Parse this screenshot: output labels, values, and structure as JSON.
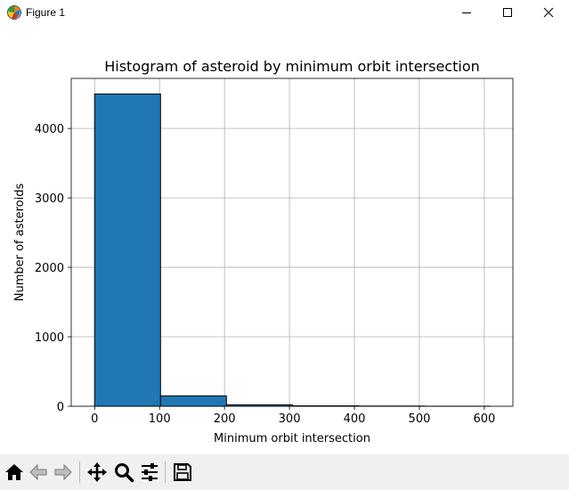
{
  "window": {
    "title": "Figure 1",
    "icon": "matplotlib-logo-icon",
    "controls": [
      "minimize-icon",
      "maximize-icon",
      "close-icon"
    ]
  },
  "toolbar": {
    "items": [
      {
        "name": "home-button",
        "icon": "home-icon"
      },
      {
        "name": "back-button",
        "icon": "back-arrow-icon"
      },
      {
        "name": "forward-button",
        "icon": "forward-arrow-icon"
      },
      {
        "name": "pan-button",
        "icon": "move-icon"
      },
      {
        "name": "zoom-button",
        "icon": "magnifier-icon"
      },
      {
        "name": "configure-subplots-button",
        "icon": "sliders-icon"
      },
      {
        "name": "save-button",
        "icon": "floppy-disk-icon"
      }
    ]
  },
  "chart_data": {
    "type": "bar",
    "title": "Histogram of asteroid by minimum orbit intersection",
    "xlabel": "Minimum orbit intersection",
    "ylabel": "Number of asteroids",
    "bins": [
      {
        "start": 0,
        "end": 101.5,
        "count": 4495
      },
      {
        "start": 101.5,
        "end": 203,
        "count": 150
      },
      {
        "start": 203,
        "end": 304.5,
        "count": 22
      },
      {
        "start": 304.5,
        "end": 406,
        "count": 6
      },
      {
        "start": 406,
        "end": 507.5,
        "count": 3
      },
      {
        "start": 507.5,
        "end": 609,
        "count": 1
      }
    ],
    "xlim": [
      -36,
      644
    ],
    "ylim": [
      0,
      4720
    ],
    "xticks": [
      0,
      100,
      200,
      300,
      400,
      500,
      600
    ],
    "yticks": [
      0,
      1000,
      2000,
      3000,
      4000
    ],
    "grid": true,
    "bar_color": "#1f77b4",
    "edge_color": "#000000"
  }
}
